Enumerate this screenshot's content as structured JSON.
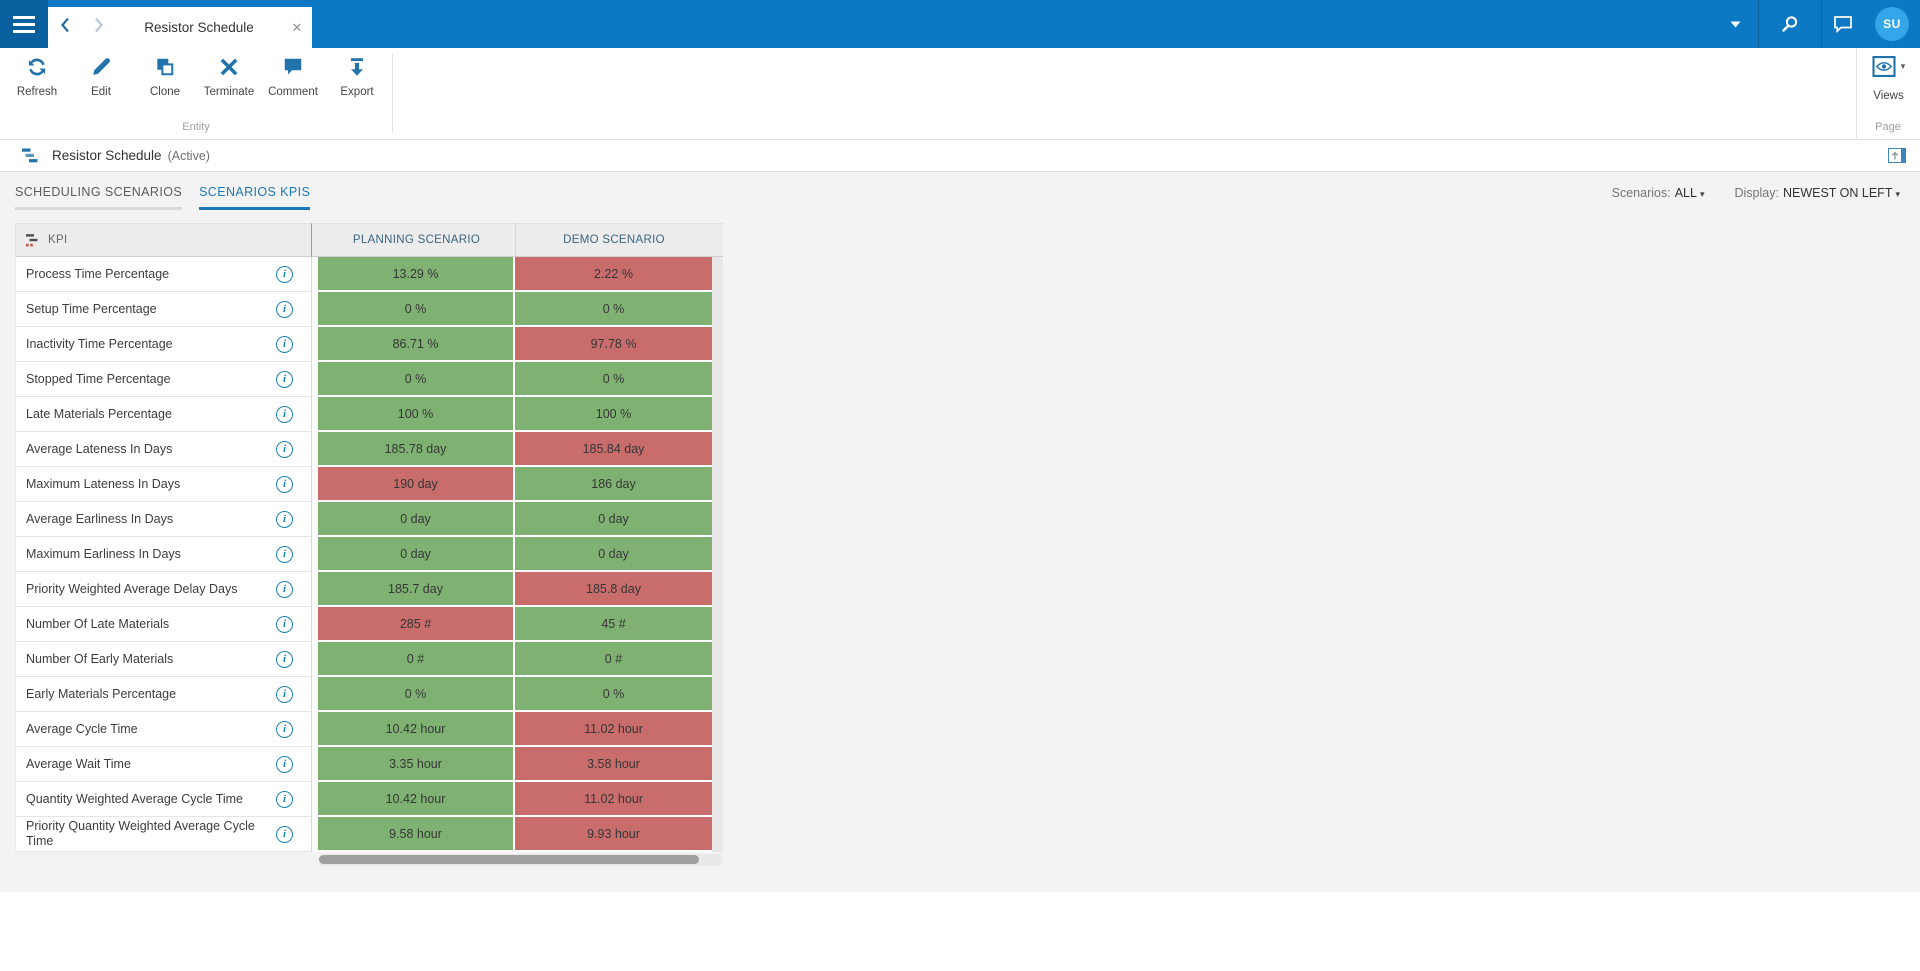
{
  "topbar": {
    "tab_title": "Resistor Schedule",
    "avatar_initials": "SU"
  },
  "ribbon": {
    "buttons": [
      {
        "label": "Refresh"
      },
      {
        "label": "Edit"
      },
      {
        "label": "Clone"
      },
      {
        "label": "Terminate"
      },
      {
        "label": "Comment"
      },
      {
        "label": "Export"
      }
    ],
    "entity_group_label": "Entity",
    "views_label": "Views",
    "page_group_label": "Page"
  },
  "entity_header": {
    "title": "Resistor Schedule",
    "status": "(Active)"
  },
  "view_tabs": {
    "scheduling": "SCHEDULING SCENARIOS",
    "kpis": "SCENARIOS KPIS"
  },
  "filters": {
    "scenarios_label": "Scenarios:",
    "scenarios_value": "ALL",
    "display_label": "Display:",
    "display_value": "NEWEST ON LEFT"
  },
  "table": {
    "kpi_header": "KPI",
    "columns": [
      "PLANNING SCENARIO",
      "DEMO SCENARIO"
    ],
    "rows": [
      {
        "kpi": "Process Time Percentage",
        "planning": {
          "value": "13.29 %",
          "status": "good"
        },
        "demo": {
          "value": "2.22 %",
          "status": "bad"
        }
      },
      {
        "kpi": "Setup Time Percentage",
        "planning": {
          "value": "0 %",
          "status": "good"
        },
        "demo": {
          "value": "0 %",
          "status": "good"
        }
      },
      {
        "kpi": "Inactivity Time Percentage",
        "planning": {
          "value": "86.71 %",
          "status": "good"
        },
        "demo": {
          "value": "97.78 %",
          "status": "bad"
        }
      },
      {
        "kpi": "Stopped Time Percentage",
        "planning": {
          "value": "0 %",
          "status": "good"
        },
        "demo": {
          "value": "0 %",
          "status": "good"
        }
      },
      {
        "kpi": "Late Materials Percentage",
        "planning": {
          "value": "100 %",
          "status": "good"
        },
        "demo": {
          "value": "100 %",
          "status": "good"
        }
      },
      {
        "kpi": "Average Lateness In Days",
        "planning": {
          "value": "185.78 day",
          "status": "good"
        },
        "demo": {
          "value": "185.84 day",
          "status": "bad"
        }
      },
      {
        "kpi": "Maximum Lateness In Days",
        "planning": {
          "value": "190 day",
          "status": "bad"
        },
        "demo": {
          "value": "186 day",
          "status": "good"
        }
      },
      {
        "kpi": "Average Earliness In Days",
        "planning": {
          "value": "0 day",
          "status": "good"
        },
        "demo": {
          "value": "0 day",
          "status": "good"
        }
      },
      {
        "kpi": "Maximum Earliness In Days",
        "planning": {
          "value": "0 day",
          "status": "good"
        },
        "demo": {
          "value": "0 day",
          "status": "good"
        }
      },
      {
        "kpi": "Priority Weighted Average Delay Days",
        "planning": {
          "value": "185.7 day",
          "status": "good"
        },
        "demo": {
          "value": "185.8 day",
          "status": "bad"
        }
      },
      {
        "kpi": "Number Of Late Materials",
        "planning": {
          "value": "285 #",
          "status": "bad"
        },
        "demo": {
          "value": "45 #",
          "status": "good"
        }
      },
      {
        "kpi": "Number Of Early Materials",
        "planning": {
          "value": "0 #",
          "status": "good"
        },
        "demo": {
          "value": "0 #",
          "status": "good"
        }
      },
      {
        "kpi": "Early Materials Percentage",
        "planning": {
          "value": "0 %",
          "status": "good"
        },
        "demo": {
          "value": "0 %",
          "status": "good"
        }
      },
      {
        "kpi": "Average Cycle Time",
        "planning": {
          "value": "10.42 hour",
          "status": "good"
        },
        "demo": {
          "value": "11.02 hour",
          "status": "bad"
        }
      },
      {
        "kpi": "Average Wait Time",
        "planning": {
          "value": "3.35 hour",
          "status": "good"
        },
        "demo": {
          "value": "3.58 hour",
          "status": "bad"
        }
      },
      {
        "kpi": "Quantity Weighted Average Cycle Time",
        "planning": {
          "value": "10.42 hour",
          "status": "good"
        },
        "demo": {
          "value": "11.02 hour",
          "status": "bad"
        }
      },
      {
        "kpi": "Priority Quantity Weighted Average Cycle Time",
        "planning": {
          "value": "9.58 hour",
          "status": "good"
        },
        "demo": {
          "value": "9.93 hour",
          "status": "bad"
        }
      }
    ]
  },
  "colors": {
    "topbar": "#0d78c4",
    "hamburger": "#09609e",
    "avatar": "#35a6e9",
    "accent": "#2373ab",
    "tab_active": "#1f78b6",
    "good": "#7fb272",
    "bad": "#c96c6c",
    "header_text": "#3d6480"
  }
}
